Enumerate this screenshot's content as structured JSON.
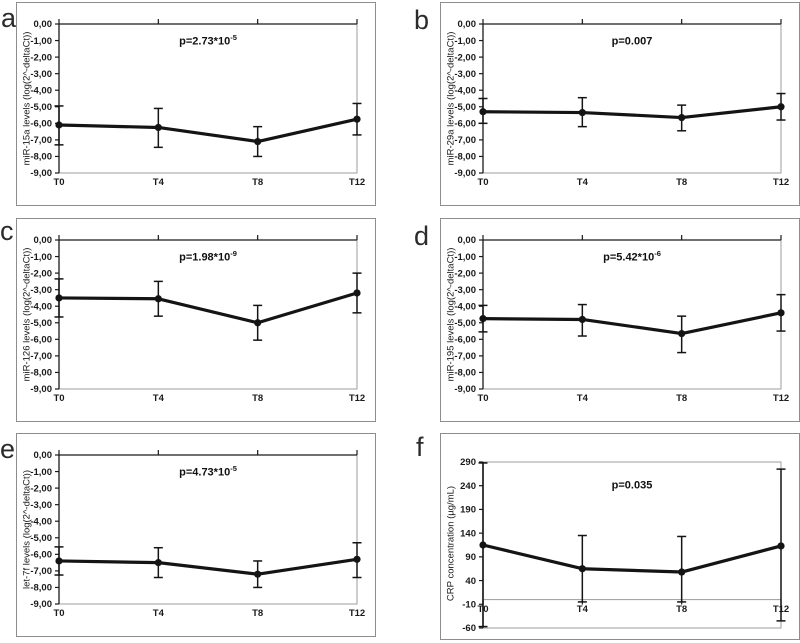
{
  "colors": {
    "line": "#141414",
    "frame": "#9e9e9e",
    "axis": "#1a1a1a",
    "crp_axis": "#a6a6a6"
  },
  "chart_data": [
    {
      "type": "line",
      "panel_letter": "a",
      "ylabel": "miR-15a levels (log(2^-deltaCt))",
      "p_base": "p=2.73*10",
      "p_exp": "-5",
      "categories": [
        "T0",
        "T4",
        "T8",
        "T12"
      ],
      "values": [
        -6.1,
        -6.25,
        -7.1,
        -5.75
      ],
      "error_low": [
        -7.3,
        -7.45,
        -8.0,
        -6.7
      ],
      "error_high": [
        -4.95,
        -5.1,
        -6.2,
        -4.8
      ],
      "ylim": [
        0,
        -9
      ],
      "ytick_labels": [
        "0,00",
        "-1,00",
        "-2,00",
        "-3,00",
        "-4,00",
        "-5,00",
        "-6,00",
        "-7,00",
        "-8,00",
        "-9,00"
      ],
      "ytick_values": [
        0,
        -1,
        -2,
        -3,
        -4,
        -5,
        -6,
        -7,
        -8,
        -9
      ],
      "axis_cross": 0,
      "grid": false,
      "legend": "none"
    },
    {
      "type": "line",
      "panel_letter": "b",
      "ylabel": "miR-29a levels (log(2^-deltaCt))",
      "p_base": "p=0.007",
      "p_exp": "",
      "categories": [
        "T0",
        "T4",
        "T8",
        "T12"
      ],
      "values": [
        -5.3,
        -5.35,
        -5.65,
        -5.0
      ],
      "error_low": [
        -6.0,
        -6.2,
        -6.45,
        -5.8
      ],
      "error_high": [
        -4.5,
        -4.45,
        -4.9,
        -4.2
      ],
      "ylim": [
        0,
        -9
      ],
      "ytick_labels": [
        "0,00",
        "-1,00",
        "-2,00",
        "-3,00",
        "-4,00",
        "-5,00",
        "-6,00",
        "-7,00",
        "-8,00",
        "-9,00"
      ],
      "ytick_values": [
        0,
        -1,
        -2,
        -3,
        -4,
        -5,
        -6,
        -7,
        -8,
        -9
      ],
      "axis_cross": 0,
      "grid": false,
      "legend": "none"
    },
    {
      "type": "line",
      "panel_letter": "c",
      "ylabel": "miR-126 levels (log(2^-deltaCt))",
      "p_base": "p=1.98*10",
      "p_exp": "-9",
      "categories": [
        "T0",
        "T4",
        "T8",
        "T12"
      ],
      "values": [
        -3.5,
        -3.55,
        -5.0,
        -3.2
      ],
      "error_low": [
        -4.65,
        -4.6,
        -6.05,
        -4.4
      ],
      "error_high": [
        -2.35,
        -2.5,
        -3.95,
        -2.0
      ],
      "ylim": [
        0,
        -9
      ],
      "ytick_labels": [
        "0,00",
        "-1,00",
        "-2,00",
        "-3,00",
        "-4,00",
        "-5,00",
        "-6,00",
        "-7,00",
        "-8,00",
        "-9,00"
      ],
      "ytick_values": [
        0,
        -1,
        -2,
        -3,
        -4,
        -5,
        -6,
        -7,
        -8,
        -9
      ],
      "axis_cross": 0,
      "grid": false,
      "legend": "none"
    },
    {
      "type": "line",
      "panel_letter": "d",
      "ylabel": "miR-195 levels (log(2^-deltaCt))",
      "p_base": "p=5.42*10",
      "p_exp": "-6",
      "categories": [
        "T0",
        "T4",
        "T8",
        "T12"
      ],
      "values": [
        -4.75,
        -4.8,
        -5.65,
        -4.4
      ],
      "error_low": [
        -5.55,
        -5.8,
        -6.8,
        -5.5
      ],
      "error_high": [
        -3.95,
        -3.9,
        -4.6,
        -3.3
      ],
      "ylim": [
        0,
        -9
      ],
      "ytick_labels": [
        "0,00",
        "-1,00",
        "-2,00",
        "-3,00",
        "-4,00",
        "-5,00",
        "-6,00",
        "-7,00",
        "-8,00",
        "-9,00"
      ],
      "ytick_values": [
        0,
        -1,
        -2,
        -3,
        -4,
        -5,
        -6,
        -7,
        -8,
        -9
      ],
      "axis_cross": 0,
      "grid": false,
      "legend": "none"
    },
    {
      "type": "line",
      "panel_letter": "e",
      "ylabel": "let-7f levels (log(2^-deltaCt))",
      "p_base": "p=4.73*10",
      "p_exp": "-5",
      "categories": [
        "T0",
        "T4",
        "T8",
        "T12"
      ],
      "values": [
        -6.4,
        -6.5,
        -7.2,
        -6.3
      ],
      "error_low": [
        -7.25,
        -7.4,
        -8.0,
        -7.4
      ],
      "error_high": [
        -5.55,
        -5.6,
        -6.4,
        -5.3
      ],
      "ylim": [
        0,
        -9
      ],
      "ytick_labels": [
        "0,00",
        "-1,00",
        "-2,00",
        "-3,00",
        "-4,00",
        "-5,00",
        "-6,00",
        "-7,00",
        "-8,00",
        "-9,00"
      ],
      "ytick_values": [
        0,
        -1,
        -2,
        -3,
        -4,
        -5,
        -6,
        -7,
        -8,
        -9
      ],
      "axis_cross": 0,
      "grid": false,
      "legend": "none"
    },
    {
      "type": "line",
      "panel_letter": "f",
      "ylabel": "CRP concentration (µg/mL)",
      "p_base": "p=0.035",
      "p_exp": "",
      "categories": [
        "T0",
        "T4",
        "T8",
        "T12"
      ],
      "values": [
        115,
        65,
        58,
        113
      ],
      "error_low": [
        -57,
        -5,
        -5,
        -45
      ],
      "error_high": [
        288,
        135,
        133,
        275
      ],
      "ylim": [
        290,
        -60
      ],
      "ytick_labels": [
        "290",
        "240",
        "190",
        "140",
        "90",
        "40",
        "-10",
        "-60"
      ],
      "ytick_values": [
        290,
        240,
        190,
        140,
        90,
        40,
        -10,
        -60
      ],
      "axis_cross": 0,
      "grid": false,
      "legend": "none"
    }
  ]
}
